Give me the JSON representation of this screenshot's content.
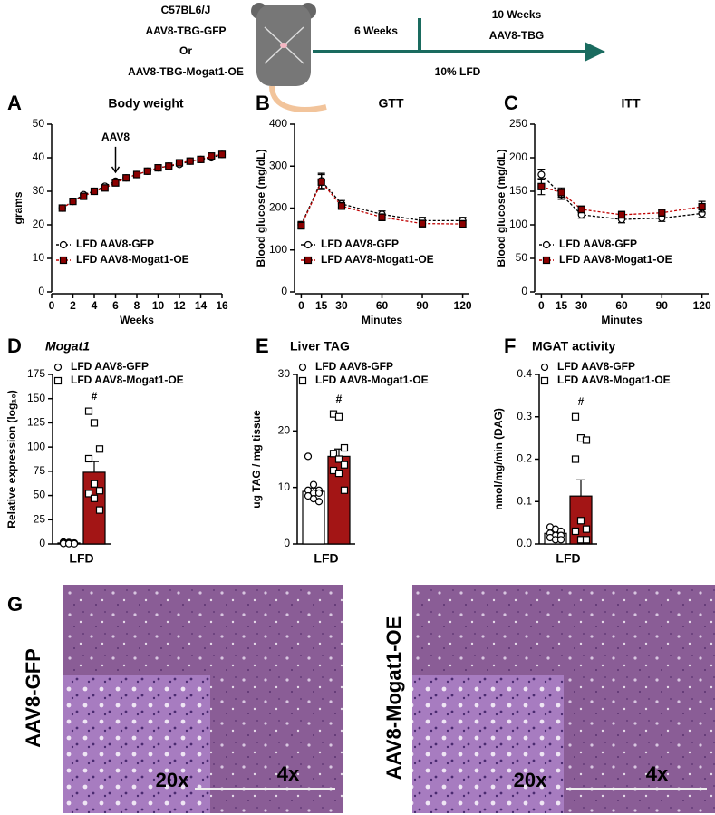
{
  "schematic": {
    "strain": "C57BL6/J",
    "vector1": "AAV8-TBG-GFP",
    "or": "Or",
    "vector2": "AAV8-TBG-Mogat1-OE",
    "phase1": "6 Weeks",
    "phase2": "10 Weeks",
    "phase2_treatment": "AAV8-TBG",
    "diet": "10% LFD"
  },
  "chart_data": [
    {
      "panel": "A",
      "type": "line",
      "title": "Body weight",
      "xlabel": "Weeks",
      "ylabel": "grams",
      "x": [
        1,
        2,
        3,
        4,
        5,
        6,
        7,
        8,
        9,
        10,
        11,
        12,
        13,
        14,
        15,
        16
      ],
      "series": [
        {
          "name": "LFD AAV8-GFP",
          "color": "#000000",
          "fill": "#ffffff",
          "marker": "circle",
          "values": [
            25,
            27,
            29,
            30,
            31.5,
            33,
            34,
            35,
            36,
            37,
            37.5,
            38,
            39,
            39.5,
            40,
            41
          ]
        },
        {
          "name": "LFD AAV8-Mogat1-OE",
          "color": "#c00000",
          "fill": "#8b0000",
          "marker": "square",
          "values": [
            25,
            27,
            28.5,
            30,
            31,
            32.5,
            34,
            35,
            36,
            37,
            37.5,
            38.5,
            39,
            39.5,
            40.5,
            41
          ]
        }
      ],
      "xlim": [
        0,
        16
      ],
      "xticks": [
        0,
        2,
        4,
        6,
        8,
        10,
        12,
        14,
        16
      ],
      "ylim": [
        0,
        50
      ],
      "yticks": [
        0,
        10,
        20,
        30,
        40,
        50
      ],
      "annotation": {
        "text": "AAV8",
        "x": 6
      }
    },
    {
      "panel": "B",
      "type": "line",
      "title": "GTT",
      "xlabel": "Minutes",
      "ylabel": "Blood glucose (mg/dL)",
      "x": [
        0,
        15,
        30,
        60,
        90,
        120
      ],
      "series": [
        {
          "name": "LFD AAV8-GFP",
          "color": "#000000",
          "fill": "#ffffff",
          "marker": "circle",
          "values": [
            160,
            265,
            210,
            185,
            170,
            170
          ],
          "errors": [
            8,
            18,
            8,
            8,
            8,
            8
          ]
        },
        {
          "name": "LFD AAV8-Mogat1-OE",
          "color": "#c00000",
          "fill": "#8b0000",
          "marker": "square",
          "values": [
            158,
            262,
            205,
            178,
            163,
            162
          ],
          "errors": [
            8,
            18,
            8,
            8,
            8,
            8
          ]
        }
      ],
      "xlim": [
        -5,
        125
      ],
      "xticks": [
        0,
        15,
        30,
        60,
        90,
        120
      ],
      "ylim": [
        0,
        400
      ],
      "yticks": [
        0,
        100,
        200,
        300,
        400
      ]
    },
    {
      "panel": "C",
      "type": "line",
      "title": "ITT",
      "xlabel": "Minutes",
      "ylabel": "Blood glucose (mg/dL)",
      "x": [
        0,
        15,
        30,
        60,
        90,
        120
      ],
      "series": [
        {
          "name": "LFD AAV8-GFP",
          "color": "#000000",
          "fill": "#ffffff",
          "marker": "circle",
          "values": [
            175,
            145,
            115,
            108,
            110,
            117
          ],
          "errors": [
            8,
            7,
            5,
            5,
            5,
            6
          ]
        },
        {
          "name": "LFD AAV8-Mogat1-OE",
          "color": "#c00000",
          "fill": "#8b0000",
          "marker": "square",
          "values": [
            157,
            148,
            123,
            115,
            118,
            127
          ],
          "errors": [
            12,
            7,
            5,
            5,
            5,
            8
          ]
        }
      ],
      "xlim": [
        -5,
        125
      ],
      "xticks": [
        0,
        15,
        30,
        60,
        90,
        120
      ],
      "ylim": [
        0,
        250
      ],
      "yticks": [
        0,
        50,
        100,
        150,
        200,
        250
      ]
    },
    {
      "panel": "D",
      "type": "bar",
      "title": "Mogat1",
      "ylabel": "Relative expression (log₁₀)",
      "categories": [
        "LFD"
      ],
      "series": [
        {
          "name": "LFD AAV8-GFP",
          "color": "#ffffff",
          "marker": "circle",
          "values": [
            1
          ],
          "errors": [
            0.3
          ],
          "points": [
            2,
            1.5,
            1,
            1,
            0.5,
            0.5,
            0.5,
            0.3,
            0.2
          ]
        },
        {
          "name": "LFD AAV8-Mogat1-OE",
          "color": "#a31515",
          "marker": "square",
          "values": [
            74
          ],
          "errors": [
            11
          ],
          "points": [
            137,
            125,
            98,
            88,
            62,
            55,
            52,
            47,
            35
          ]
        }
      ],
      "annotation": "#",
      "ylim": [
        0,
        175
      ],
      "yticks": [
        0,
        25,
        50,
        75,
        100,
        125,
        150,
        175
      ]
    },
    {
      "panel": "E",
      "type": "bar",
      "title": "Liver TAG",
      "ylabel": "ug TAG / mg tissue",
      "categories": [
        "LFD"
      ],
      "series": [
        {
          "name": "LFD AAV8-GFP",
          "color": "#ffffff",
          "marker": "circle",
          "values": [
            9.3
          ],
          "errors": [
            0.6
          ],
          "points": [
            15.5,
            10.5,
            9.5,
            9.5,
            9,
            9,
            8.5,
            8,
            7.5
          ]
        },
        {
          "name": "LFD AAV8-Mogat1-OE",
          "color": "#a31515",
          "marker": "square",
          "values": [
            15.5
          ],
          "errors": [
            1.3
          ],
          "points": [
            23,
            22.5,
            17,
            16,
            15,
            14,
            13,
            12.5,
            9.5
          ]
        }
      ],
      "annotation": "#",
      "ylim": [
        0,
        30
      ],
      "yticks": [
        0,
        10,
        20,
        30
      ]
    },
    {
      "panel": "F",
      "type": "bar",
      "title": "MGAT activity",
      "ylabel": "nmol/mg/min (DAG)",
      "categories": [
        "LFD"
      ],
      "series": [
        {
          "name": "LFD AAV8-GFP",
          "color": "#ffffff",
          "marker": "circle",
          "values": [
            0.025
          ],
          "errors": [
            0.005
          ],
          "points": [
            0.04,
            0.035,
            0.03,
            0.025,
            0.02,
            0.02,
            0.015,
            0.01,
            0.01
          ]
        },
        {
          "name": "LFD AAV8-Mogat1-OE",
          "color": "#a31515",
          "marker": "square",
          "values": [
            0.113
          ],
          "errors": [
            0.038
          ],
          "points": [
            0.3,
            0.25,
            0.245,
            0.2,
            0.055,
            0.035,
            0.03,
            0.01,
            0.01
          ]
        }
      ],
      "annotation": "#",
      "ylim": [
        0,
        0.4
      ],
      "yticks": [
        {
          "value": 0,
          "label": "0.0"
        },
        0.1,
        0.2,
        0.3,
        0.4
      ]
    }
  ],
  "histology": {
    "panel": "G",
    "images": [
      {
        "label": "AAV8-GFP",
        "inset_magnification": "20x",
        "magnification": "4x"
      },
      {
        "label": "AAV8-Mogat1-OE",
        "inset_magnification": "20x",
        "magnification": "4x"
      }
    ]
  }
}
